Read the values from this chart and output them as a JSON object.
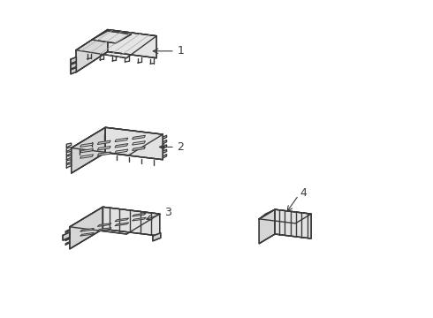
{
  "background_color": "#ffffff",
  "line_color": "#3a3a3a",
  "line_width": 1.0,
  "figsize": [
    4.9,
    3.6
  ],
  "dpi": 100
}
